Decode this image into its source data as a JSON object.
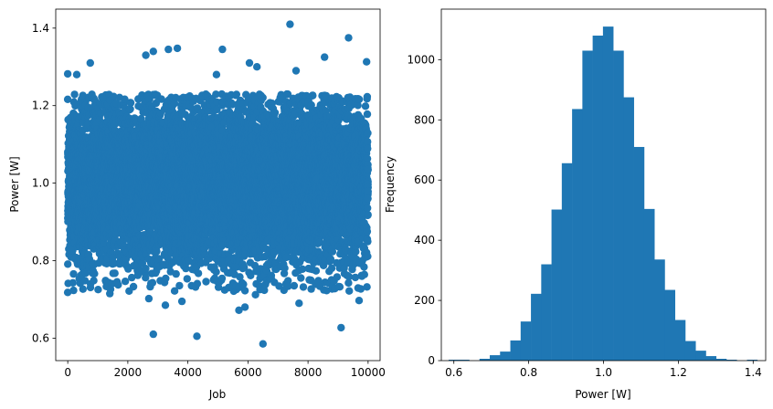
{
  "chart_data": [
    {
      "type": "scatter",
      "xlabel": "Job",
      "ylabel": "Power [W]",
      "xlim": [
        -400,
        10400
      ],
      "ylim": [
        0.542,
        1.449
      ],
      "xticks": [
        0,
        2000,
        4000,
        6000,
        8000,
        10000
      ],
      "yticks": [
        0.6,
        0.8,
        1.0,
        1.2,
        1.4
      ],
      "ytick_labels": [
        "0.6",
        "0.8",
        "1.0",
        "1.2",
        "1.4"
      ],
      "color": "#1f77b4",
      "n_points": 10000,
      "bulk_range": [
        0.75,
        1.2
      ],
      "outliers": [
        [
          2850,
          0.61
        ],
        [
          4300,
          0.605
        ],
        [
          6500,
          0.585
        ],
        [
          9100,
          0.627
        ],
        [
          7400,
          1.41
        ],
        [
          9350,
          1.375
        ],
        [
          5150,
          1.345
        ],
        [
          3650,
          1.348
        ],
        [
          3350,
          1.345
        ],
        [
          2850,
          1.34
        ],
        [
          2600,
          1.33
        ],
        [
          8550,
          1.325
        ],
        [
          6050,
          1.31
        ],
        [
          750,
          1.31
        ],
        [
          0,
          1.282
        ],
        [
          300,
          1.28
        ],
        [
          4950,
          1.28
        ],
        [
          7600,
          1.29
        ],
        [
          9950,
          1.313
        ],
        [
          6300,
          1.3
        ],
        [
          3250,
          0.685
        ],
        [
          5700,
          0.672
        ],
        [
          5900,
          0.68
        ],
        [
          7700,
          0.69
        ],
        [
          3800,
          0.695
        ],
        [
          9700,
          0.697
        ],
        [
          0,
          0.718
        ],
        [
          1400,
          0.715
        ],
        [
          2700,
          0.702
        ],
        [
          6250,
          0.712
        ]
      ]
    },
    {
      "type": "histogram",
      "xlabel": "Power [W]",
      "ylabel": "Frequency",
      "xlim": [
        0.5665,
        1.4335
      ],
      "ylim": [
        0,
        1168
      ],
      "xticks": [
        0.6,
        0.8,
        1.0,
        1.2,
        1.4
      ],
      "xtick_labels": [
        "0.6",
        "0.8",
        "1.0",
        "1.2",
        "1.4"
      ],
      "yticks": [
        0,
        200,
        400,
        600,
        800,
        1000
      ],
      "color": "#1f77b4",
      "bin_start": 0.586,
      "bin_width": 0.0275,
      "counts": [
        3,
        3,
        0,
        6,
        18,
        30,
        67,
        130,
        222,
        320,
        502,
        656,
        836,
        1030,
        1080,
        1110,
        1030,
        875,
        710,
        504,
        336,
        235,
        135,
        65,
        33,
        15,
        6,
        3,
        0,
        3
      ]
    }
  ]
}
